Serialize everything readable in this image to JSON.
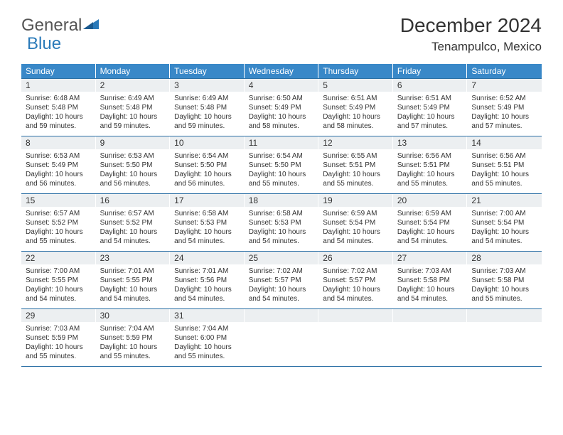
{
  "logo": {
    "word1": "General",
    "word2": "Blue"
  },
  "title": "December 2024",
  "location": "Tenampulco, Mexico",
  "colors": {
    "header_bg": "#3988c8",
    "header_fg": "#ffffff",
    "daynum_bg": "#eceff1",
    "border": "#2a6fa5",
    "text": "#333333",
    "logo_gray": "#555555",
    "logo_blue": "#2a7ab9",
    "page_bg": "#ffffff"
  },
  "daysOfWeek": [
    "Sunday",
    "Monday",
    "Tuesday",
    "Wednesday",
    "Thursday",
    "Friday",
    "Saturday"
  ],
  "weeks": [
    [
      {
        "n": "1",
        "sr": "Sunrise: 6:48 AM",
        "ss": "Sunset: 5:48 PM",
        "dl": "Daylight: 10 hours and 59 minutes."
      },
      {
        "n": "2",
        "sr": "Sunrise: 6:49 AM",
        "ss": "Sunset: 5:48 PM",
        "dl": "Daylight: 10 hours and 59 minutes."
      },
      {
        "n": "3",
        "sr": "Sunrise: 6:49 AM",
        "ss": "Sunset: 5:48 PM",
        "dl": "Daylight: 10 hours and 59 minutes."
      },
      {
        "n": "4",
        "sr": "Sunrise: 6:50 AM",
        "ss": "Sunset: 5:49 PM",
        "dl": "Daylight: 10 hours and 58 minutes."
      },
      {
        "n": "5",
        "sr": "Sunrise: 6:51 AM",
        "ss": "Sunset: 5:49 PM",
        "dl": "Daylight: 10 hours and 58 minutes."
      },
      {
        "n": "6",
        "sr": "Sunrise: 6:51 AM",
        "ss": "Sunset: 5:49 PM",
        "dl": "Daylight: 10 hours and 57 minutes."
      },
      {
        "n": "7",
        "sr": "Sunrise: 6:52 AM",
        "ss": "Sunset: 5:49 PM",
        "dl": "Daylight: 10 hours and 57 minutes."
      }
    ],
    [
      {
        "n": "8",
        "sr": "Sunrise: 6:53 AM",
        "ss": "Sunset: 5:49 PM",
        "dl": "Daylight: 10 hours and 56 minutes."
      },
      {
        "n": "9",
        "sr": "Sunrise: 6:53 AM",
        "ss": "Sunset: 5:50 PM",
        "dl": "Daylight: 10 hours and 56 minutes."
      },
      {
        "n": "10",
        "sr": "Sunrise: 6:54 AM",
        "ss": "Sunset: 5:50 PM",
        "dl": "Daylight: 10 hours and 56 minutes."
      },
      {
        "n": "11",
        "sr": "Sunrise: 6:54 AM",
        "ss": "Sunset: 5:50 PM",
        "dl": "Daylight: 10 hours and 55 minutes."
      },
      {
        "n": "12",
        "sr": "Sunrise: 6:55 AM",
        "ss": "Sunset: 5:51 PM",
        "dl": "Daylight: 10 hours and 55 minutes."
      },
      {
        "n": "13",
        "sr": "Sunrise: 6:56 AM",
        "ss": "Sunset: 5:51 PM",
        "dl": "Daylight: 10 hours and 55 minutes."
      },
      {
        "n": "14",
        "sr": "Sunrise: 6:56 AM",
        "ss": "Sunset: 5:51 PM",
        "dl": "Daylight: 10 hours and 55 minutes."
      }
    ],
    [
      {
        "n": "15",
        "sr": "Sunrise: 6:57 AM",
        "ss": "Sunset: 5:52 PM",
        "dl": "Daylight: 10 hours and 55 minutes."
      },
      {
        "n": "16",
        "sr": "Sunrise: 6:57 AM",
        "ss": "Sunset: 5:52 PM",
        "dl": "Daylight: 10 hours and 54 minutes."
      },
      {
        "n": "17",
        "sr": "Sunrise: 6:58 AM",
        "ss": "Sunset: 5:53 PM",
        "dl": "Daylight: 10 hours and 54 minutes."
      },
      {
        "n": "18",
        "sr": "Sunrise: 6:58 AM",
        "ss": "Sunset: 5:53 PM",
        "dl": "Daylight: 10 hours and 54 minutes."
      },
      {
        "n": "19",
        "sr": "Sunrise: 6:59 AM",
        "ss": "Sunset: 5:54 PM",
        "dl": "Daylight: 10 hours and 54 minutes."
      },
      {
        "n": "20",
        "sr": "Sunrise: 6:59 AM",
        "ss": "Sunset: 5:54 PM",
        "dl": "Daylight: 10 hours and 54 minutes."
      },
      {
        "n": "21",
        "sr": "Sunrise: 7:00 AM",
        "ss": "Sunset: 5:54 PM",
        "dl": "Daylight: 10 hours and 54 minutes."
      }
    ],
    [
      {
        "n": "22",
        "sr": "Sunrise: 7:00 AM",
        "ss": "Sunset: 5:55 PM",
        "dl": "Daylight: 10 hours and 54 minutes."
      },
      {
        "n": "23",
        "sr": "Sunrise: 7:01 AM",
        "ss": "Sunset: 5:55 PM",
        "dl": "Daylight: 10 hours and 54 minutes."
      },
      {
        "n": "24",
        "sr": "Sunrise: 7:01 AM",
        "ss": "Sunset: 5:56 PM",
        "dl": "Daylight: 10 hours and 54 minutes."
      },
      {
        "n": "25",
        "sr": "Sunrise: 7:02 AM",
        "ss": "Sunset: 5:57 PM",
        "dl": "Daylight: 10 hours and 54 minutes."
      },
      {
        "n": "26",
        "sr": "Sunrise: 7:02 AM",
        "ss": "Sunset: 5:57 PM",
        "dl": "Daylight: 10 hours and 54 minutes."
      },
      {
        "n": "27",
        "sr": "Sunrise: 7:03 AM",
        "ss": "Sunset: 5:58 PM",
        "dl": "Daylight: 10 hours and 54 minutes."
      },
      {
        "n": "28",
        "sr": "Sunrise: 7:03 AM",
        "ss": "Sunset: 5:58 PM",
        "dl": "Daylight: 10 hours and 55 minutes."
      }
    ],
    [
      {
        "n": "29",
        "sr": "Sunrise: 7:03 AM",
        "ss": "Sunset: 5:59 PM",
        "dl": "Daylight: 10 hours and 55 minutes."
      },
      {
        "n": "30",
        "sr": "Sunrise: 7:04 AM",
        "ss": "Sunset: 5:59 PM",
        "dl": "Daylight: 10 hours and 55 minutes."
      },
      {
        "n": "31",
        "sr": "Sunrise: 7:04 AM",
        "ss": "Sunset: 6:00 PM",
        "dl": "Daylight: 10 hours and 55 minutes."
      },
      null,
      null,
      null,
      null
    ]
  ]
}
